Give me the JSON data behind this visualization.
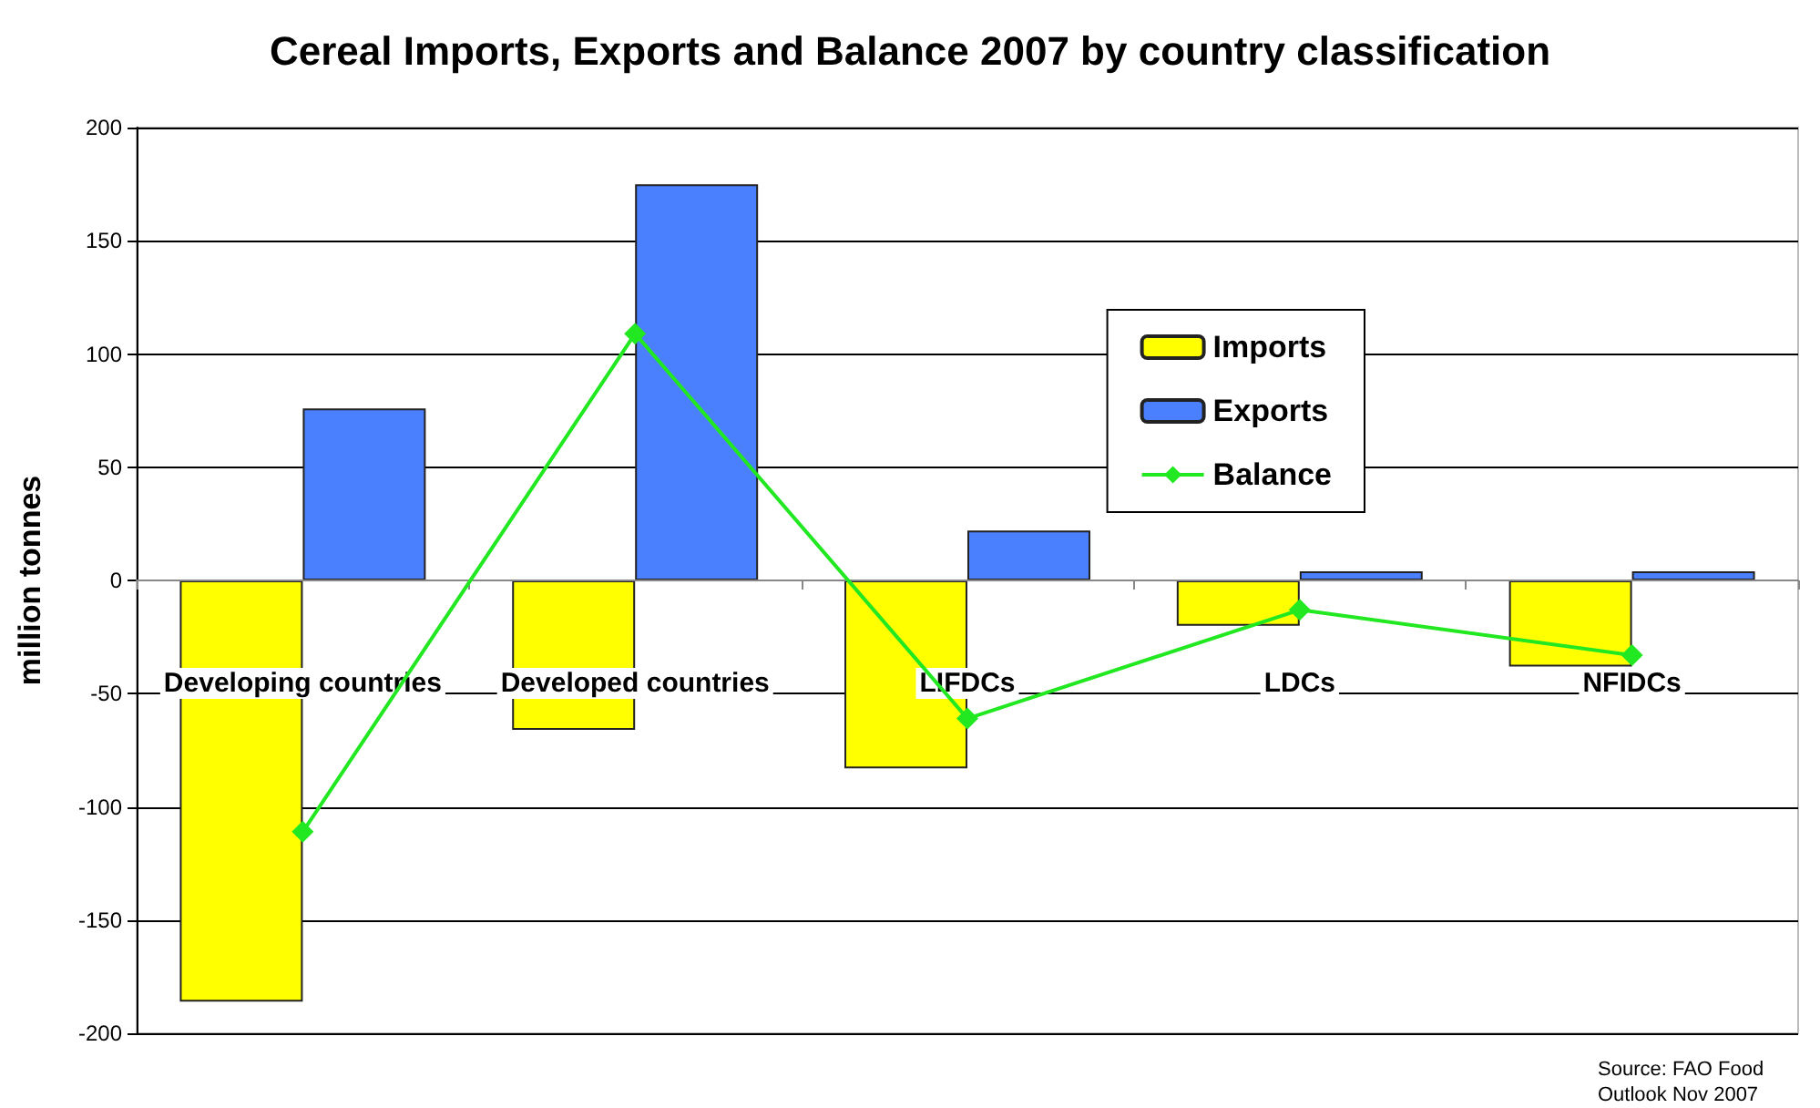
{
  "chart_data": {
    "type": "bar",
    "title": "Cereal Imports, Exports and Balance 2007 by country classification",
    "ylabel": "million tonnes",
    "categories": [
      "Developing countries",
      "Developed countries",
      "LIFDCs",
      "LDCs",
      "NFIDCs"
    ],
    "series": [
      {
        "name": "Imports",
        "color": "#ffff00",
        "values": [
          -186,
          -66,
          -83,
          -20,
          -38
        ]
      },
      {
        "name": "Exports",
        "color": "#4a7ffe",
        "values": [
          76,
          175,
          22,
          4,
          4
        ]
      },
      {
        "name": "Balance",
        "type": "line",
        "color": "#22e822",
        "values": [
          -111,
          109,
          -61,
          -13,
          -33
        ],
        "marker": "diamond"
      }
    ],
    "ylim": [
      -200,
      200
    ],
    "yticks": [
      -200,
      -150,
      -100,
      -50,
      0,
      50,
      100,
      150,
      200
    ],
    "grid": "y",
    "legend": "right",
    "annotations": [
      "Source: FAO Food Outlook Nov 2007"
    ]
  }
}
